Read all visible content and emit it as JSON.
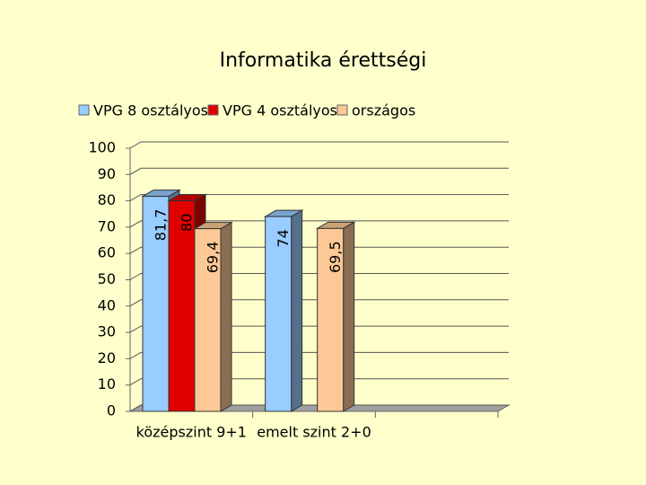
{
  "chart_data": {
    "type": "bar",
    "title": "Informatika érettségi",
    "categories": [
      "középszint 9+1",
      "emelt szint 2+0",
      null
    ],
    "series": [
      {
        "name": "VPG 8 osztályos",
        "color": "#99ccff",
        "values": [
          81.7,
          74,
          null
        ],
        "value_labels": [
          "81,7",
          "74",
          null
        ]
      },
      {
        "name": "VPG 4 osztályos",
        "color": "#e00000",
        "values": [
          80,
          null,
          null
        ],
        "value_labels": [
          "80",
          null,
          null
        ]
      },
      {
        "name": "országos",
        "color": "#fcc895",
        "values": [
          69.4,
          69.5,
          null
        ],
        "value_labels": [
          "69,4",
          "69,5",
          null
        ]
      }
    ],
    "ylim": [
      0,
      100
    ],
    "yticks": [
      0,
      10,
      20,
      30,
      40,
      50,
      60,
      70,
      80,
      90,
      100
    ],
    "grid": true,
    "legend": "top"
  }
}
